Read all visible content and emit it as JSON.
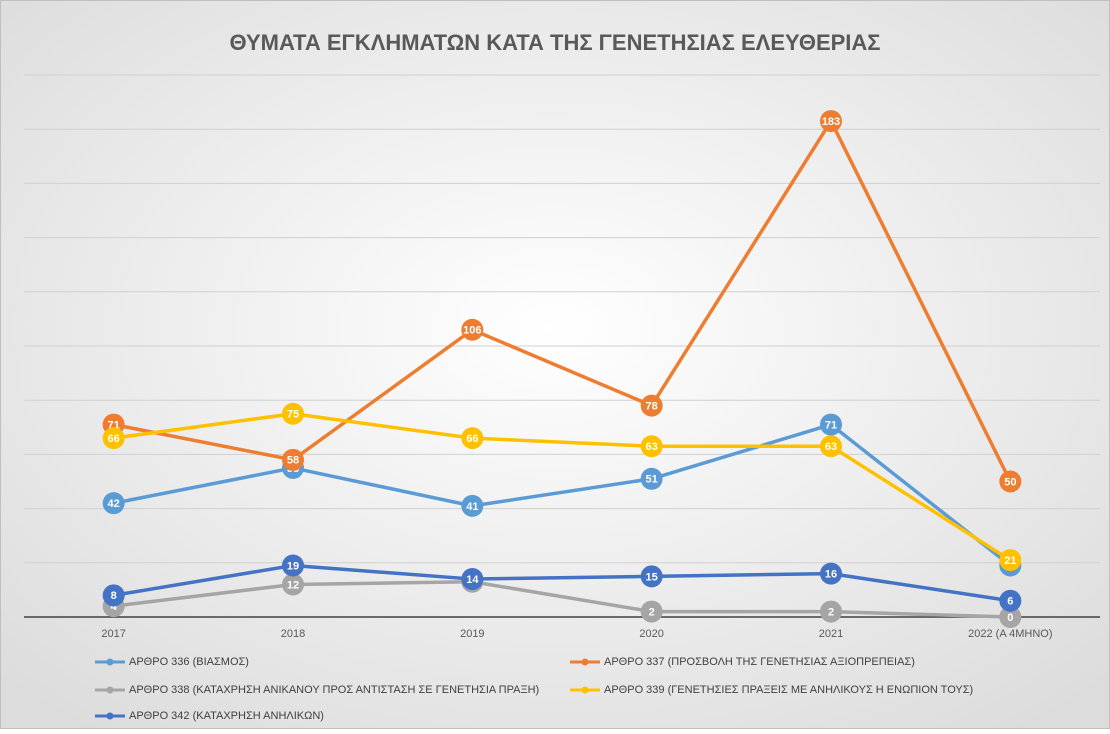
{
  "chart_data": {
    "type": "line",
    "title": "ΘΥΜΑΤΑ ΕΓΚΛΗΜΑΤΩΝ ΚΑΤΑ ΤΗΣ ΓΕΝΕΤΗΣΙΑΣ ΕΛΕΥΘΕΡΙΑΣ",
    "categories": [
      "2017",
      "2018",
      "2019",
      "2020",
      "2021",
      "2022 (Α 4ΜΗΝΟ)"
    ],
    "series": [
      {
        "name": "ΑΡΘΡΟ 336 (ΒΙΑΣΜΟΣ)",
        "color": "#5b9bd5",
        "values": [
          42,
          55,
          41,
          51,
          71,
          19
        ]
      },
      {
        "name": "ΑΡΘΡΟ 337 (ΠΡΟΣΒΟΛΗ ΤΗΣ ΓΕΝΕΤΗΣΙΑΣ ΑΞΙΟΠΡΕΠΕΙΑΣ)",
        "color": "#ed7d31",
        "values": [
          71,
          58,
          106,
          78,
          183,
          50
        ]
      },
      {
        "name": "ΑΡΘΡΟ 338 (ΚΑΤΑΧΡΗΣΗ ΑΝΙΚΑΝΟΥ ΠΡΟΣ ΑΝΤΙΣΤΑΣΗ ΣΕ ΓΕΝΕΤΗΣΙΑ ΠΡΑΞΗ)",
        "color": "#a5a5a5",
        "values": [
          4,
          12,
          13,
          2,
          2,
          0
        ]
      },
      {
        "name": "ΑΡΘΡΟ 339 (ΓΕΝΕΤΗΣΙΕΣ ΠΡΑΞΕΙΣ ΜΕ ΑΝΗΛΙΚΟΥΣ Η ΕΝΩΠΙΟΝ ΤΟΥΣ)",
        "color": "#ffc000",
        "values": [
          66,
          75,
          66,
          63,
          63,
          21
        ]
      },
      {
        "name": "ΑΡΘΡΟ 342 (ΚΑΤΑΧΡΗΣΗ ΑΝΗΛΙΚΩΝ)",
        "color": "#4472c4",
        "values": [
          8,
          19,
          14,
          15,
          16,
          6
        ]
      }
    ],
    "ylim": [
      0,
      200
    ],
    "yticks": [
      0,
      20,
      40,
      60,
      80,
      100,
      120,
      140,
      160,
      180,
      200
    ],
    "ytick_labels_visible": false,
    "grid": true,
    "legend": "bottom"
  }
}
